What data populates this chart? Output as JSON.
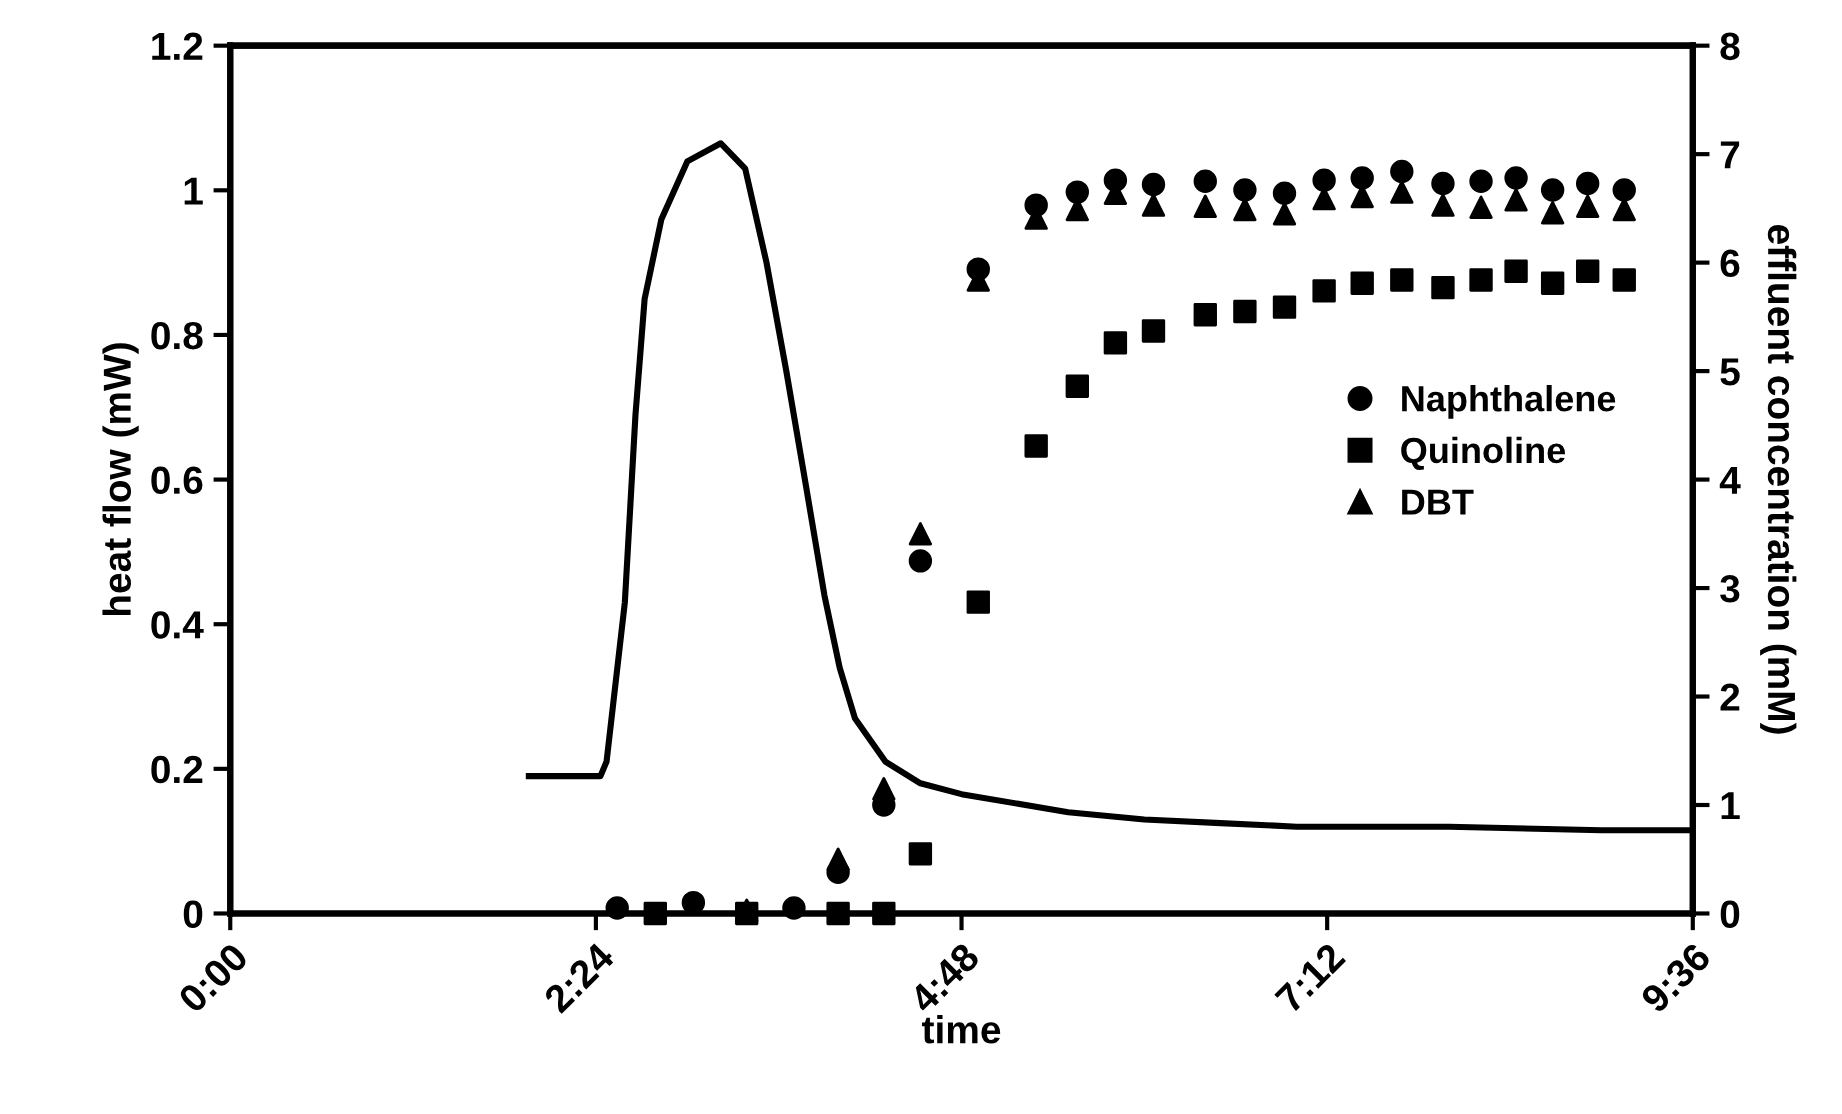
{
  "chart_data": {
    "type": "scatter",
    "xlabel": "time",
    "ylabel": "heat flow (mW)",
    "y2label": "effluent concentration (mM)",
    "xlim": [
      0,
      9.6
    ],
    "xticks": [
      {
        "value": 0,
        "label": "0:00"
      },
      {
        "value": 2.4,
        "label": "2:24"
      },
      {
        "value": 4.8,
        "label": "4:48"
      },
      {
        "value": 7.2,
        "label": "7:12"
      },
      {
        "value": 9.6,
        "label": "9:36"
      }
    ],
    "ylim": [
      0,
      1.2
    ],
    "yticks": [
      0,
      0.2,
      0.4,
      0.6,
      0.8,
      1,
      1.2
    ],
    "y2lim": [
      0,
      8
    ],
    "y2ticks": [
      0,
      1,
      2,
      3,
      4,
      5,
      6,
      7,
      8
    ],
    "x": [
      2.54,
      2.79,
      3.04,
      3.39,
      3.7,
      3.99,
      4.29,
      4.53,
      4.91,
      5.29,
      5.56,
      5.81,
      6.06,
      6.4,
      6.66,
      6.92,
      7.18,
      7.43,
      7.69,
      7.96,
      8.21,
      8.44,
      8.68,
      8.91,
      9.15
    ],
    "legend": "right",
    "grid": false,
    "series": [
      {
        "type": "line",
        "color": "#000000",
        "marker": "none",
        "line_style": "solid",
        "x": [
          1.96,
          2.43,
          2.47,
          2.59,
          2.66,
          2.72,
          2.83,
          3.0,
          3.22,
          3.38,
          3.52,
          3.65,
          3.78,
          3.9,
          4.0,
          4.1,
          4.3,
          4.53,
          4.8,
          5.5,
          6.0,
          6.5,
          7.0,
          8.0,
          9.0,
          9.6
        ],
        "values": [
          0.19,
          0.19,
          0.21,
          0.43,
          0.69,
          0.85,
          0.96,
          1.04,
          1.065,
          1.03,
          0.9,
          0.75,
          0.59,
          0.44,
          0.34,
          0.27,
          0.21,
          0.18,
          0.165,
          0.14,
          0.13,
          0.125,
          0.12,
          0.12,
          0.115,
          0.115
        ]
      },
      {
        "name": "Naphthalene",
        "axis": "y2",
        "marker": "circle",
        "color": "#000000",
        "values": [
          0.05,
          null,
          0.1,
          null,
          0.05,
          0.38,
          1.0,
          3.25,
          5.94,
          6.53,
          6.65,
          6.76,
          6.72,
          6.75,
          6.67,
          6.64,
          6.76,
          6.78,
          6.84,
          6.73,
          6.75,
          6.78,
          6.67,
          6.73,
          6.67
        ]
      },
      {
        "name": "Quinoline",
        "axis": "y2",
        "marker": "square",
        "color": "#000000",
        "values": [
          null,
          0,
          null,
          0,
          null,
          0,
          0,
          0.55,
          2.87,
          4.31,
          4.86,
          5.26,
          5.37,
          5.52,
          5.55,
          5.59,
          5.74,
          5.81,
          5.84,
          5.77,
          5.84,
          5.92,
          5.81,
          5.92,
          5.84
        ]
      },
      {
        "name": "DBT",
        "axis": "y2",
        "marker": "triangle",
        "color": "#000000",
        "values": [
          null,
          null,
          null,
          0.03,
          null,
          0.5,
          1.15,
          3.5,
          5.84,
          6.41,
          6.49,
          6.64,
          6.53,
          6.52,
          6.49,
          6.45,
          6.59,
          6.61,
          6.65,
          6.53,
          6.51,
          6.58,
          6.46,
          6.52,
          6.49
        ]
      }
    ]
  }
}
